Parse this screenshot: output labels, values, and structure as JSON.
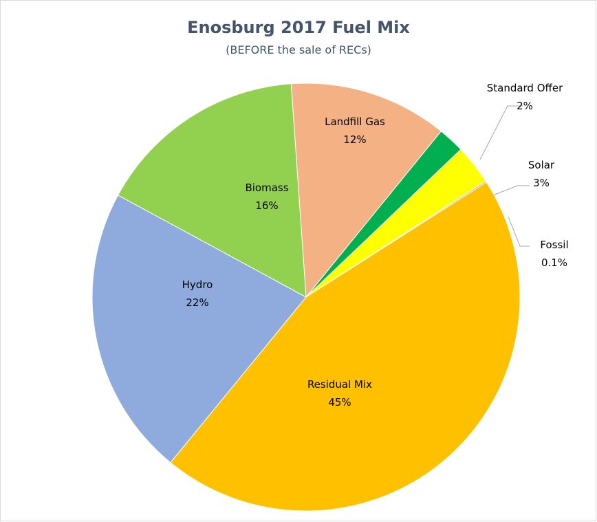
{
  "chart_data": {
    "type": "pie",
    "title": "Enosburg 2017 Fuel Mix",
    "subtitle": "(BEFORE the sale of RECs)",
    "slices": [
      {
        "name": "Landfill Gas",
        "value": 12,
        "label": "12%",
        "color": "#f4b183"
      },
      {
        "name": "Standard Offer",
        "value": 2,
        "label": "2%",
        "color": "#00b050"
      },
      {
        "name": "Solar",
        "value": 3,
        "label": "3%",
        "color": "#ffff00"
      },
      {
        "name": "Fossil",
        "value": 0.1,
        "label": "0.1%",
        "color": "#a5a5a5"
      },
      {
        "name": "Residual Mix",
        "value": 45,
        "label": "45%",
        "color": "#ffc000"
      },
      {
        "name": "Hydro",
        "value": 22,
        "label": "22%",
        "color": "#8faadc"
      },
      {
        "name": "Biomass",
        "value": 16,
        "label": "16%",
        "color": "#92d050"
      }
    ],
    "legend": "none"
  }
}
